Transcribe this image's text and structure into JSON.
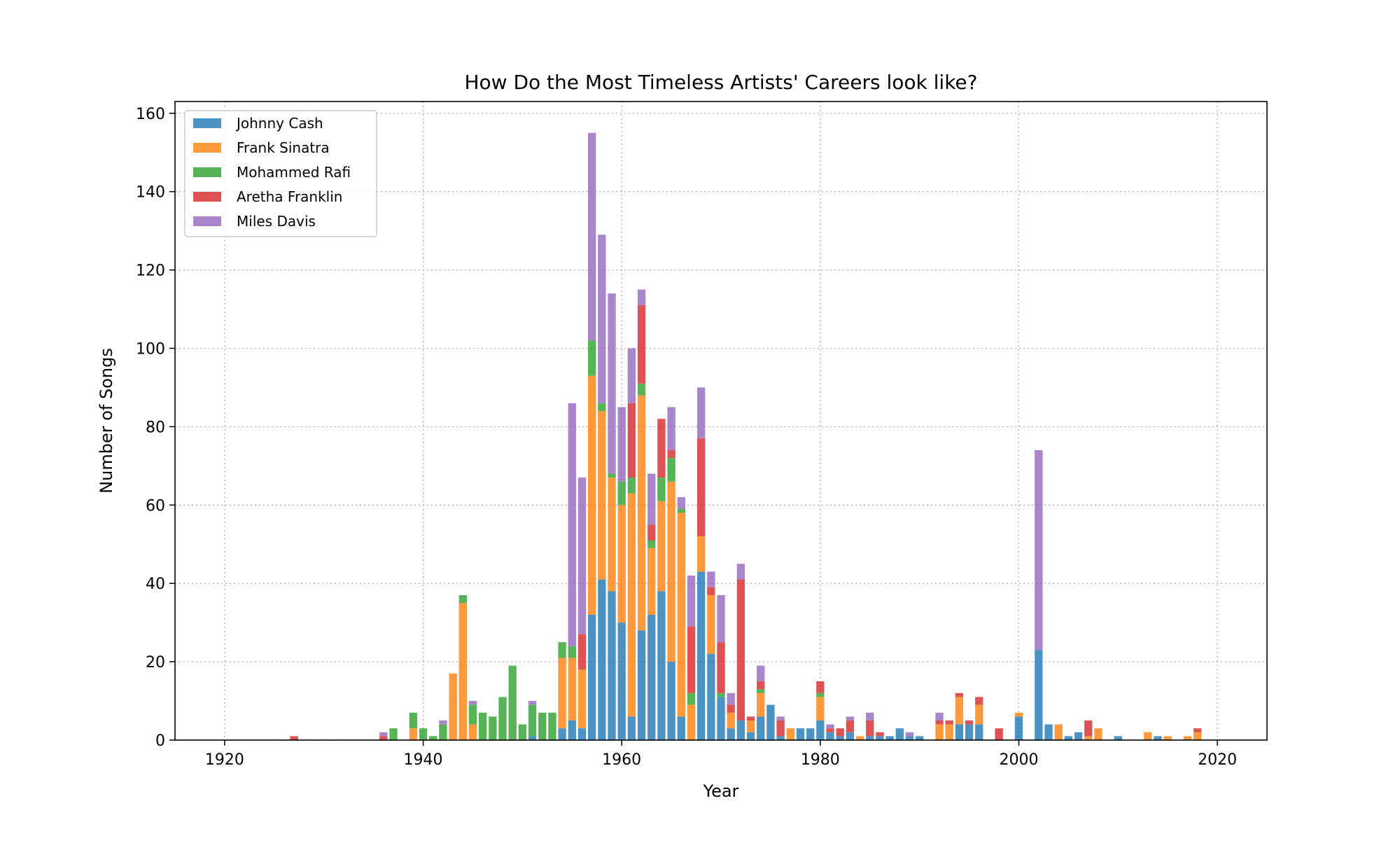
{
  "chart_data": {
    "type": "bar",
    "stacked": true,
    "title": "How Do the Most Timeless Artists' Careers look like?",
    "xlabel": "Year",
    "ylabel": "Number of Songs",
    "xlim": [
      1915,
      2025
    ],
    "ylim": [
      0,
      163
    ],
    "xticks": [
      1920,
      1940,
      1960,
      1980,
      2000,
      2020
    ],
    "yticks": [
      0,
      20,
      40,
      60,
      80,
      100,
      120,
      140,
      160
    ],
    "grid": true,
    "legend_position": "top-left",
    "x": [
      1927,
      1936,
      1937,
      1939,
      1940,
      1941,
      1942,
      1943,
      1944,
      1945,
      1946,
      1947,
      1948,
      1949,
      1950,
      1951,
      1952,
      1953,
      1954,
      1955,
      1956,
      1957,
      1958,
      1959,
      1960,
      1961,
      1962,
      1963,
      1964,
      1965,
      1966,
      1967,
      1968,
      1969,
      1970,
      1971,
      1972,
      1973,
      1974,
      1975,
      1976,
      1977,
      1978,
      1979,
      1980,
      1981,
      1982,
      1983,
      1984,
      1985,
      1986,
      1987,
      1988,
      1989,
      1990,
      1992,
      1993,
      1994,
      1995,
      1996,
      1998,
      2000,
      2002,
      2003,
      2004,
      2005,
      2006,
      2007,
      2008,
      2010,
      2013,
      2014,
      2015,
      2017,
      2018
    ],
    "series": [
      {
        "name": "Johnny Cash",
        "color": "#1f77b4",
        "values": [
          0,
          0,
          0,
          0,
          0,
          0,
          0,
          0,
          0,
          0,
          0,
          0,
          0,
          0,
          0,
          1,
          0,
          0,
          3,
          5,
          3,
          32,
          41,
          38,
          30,
          6,
          28,
          32,
          38,
          20,
          6,
          0,
          43,
          22,
          11,
          3,
          5,
          2,
          6,
          9,
          1,
          0,
          3,
          3,
          5,
          2,
          1,
          2,
          0,
          1,
          1,
          1,
          3,
          1,
          1,
          0,
          0,
          4,
          4,
          4,
          0,
          6,
          23,
          4,
          0,
          1,
          2,
          0,
          0,
          1,
          0,
          1,
          0,
          0,
          0
        ]
      },
      {
        "name": "Frank Sinatra",
        "color": "#ff7f0e",
        "values": [
          0,
          0,
          0,
          3,
          0,
          0,
          0,
          17,
          35,
          4,
          0,
          0,
          0,
          0,
          0,
          0,
          0,
          0,
          18,
          16,
          15,
          61,
          43,
          29,
          30,
          57,
          60,
          17,
          23,
          46,
          52,
          9,
          9,
          15,
          0,
          4,
          0,
          3,
          6,
          0,
          0,
          3,
          0,
          0,
          6,
          0,
          0,
          0,
          1,
          0,
          0,
          0,
          0,
          0,
          0,
          4,
          4,
          7,
          0,
          5,
          0,
          1,
          0,
          0,
          4,
          0,
          0,
          1,
          3,
          0,
          2,
          0,
          1,
          1,
          2
        ]
      },
      {
        "name": "Mohammed Rafi",
        "color": "#2ca02c",
        "values": [
          0,
          0,
          3,
          4,
          3,
          1,
          4,
          0,
          2,
          5,
          7,
          6,
          11,
          19,
          4,
          8,
          7,
          7,
          4,
          3,
          0,
          9,
          2,
          1,
          6,
          4,
          3,
          2,
          6,
          6,
          1,
          3,
          0,
          0,
          1,
          0,
          0,
          0,
          1,
          0,
          0,
          0,
          0,
          0,
          1,
          0,
          0,
          0,
          0,
          0,
          0,
          0,
          0,
          0,
          0,
          0,
          0,
          0,
          0,
          0,
          0,
          0,
          0,
          0,
          0,
          0,
          0,
          0,
          0,
          0,
          0,
          0,
          0,
          0,
          0
        ]
      },
      {
        "name": "Aretha Franklin",
        "color": "#d62728",
        "values": [
          1,
          1,
          0,
          0,
          0,
          0,
          0,
          0,
          0,
          0,
          0,
          0,
          0,
          0,
          0,
          0,
          0,
          0,
          0,
          0,
          9,
          0,
          0,
          0,
          0,
          19,
          20,
          4,
          15,
          2,
          0,
          17,
          25,
          2,
          13,
          2,
          36,
          1,
          2,
          0,
          4,
          0,
          0,
          0,
          3,
          1,
          2,
          3,
          0,
          4,
          1,
          0,
          0,
          0,
          0,
          1,
          1,
          1,
          1,
          2,
          3,
          0,
          0,
          0,
          0,
          0,
          0,
          4,
          0,
          0,
          0,
          0,
          0,
          0,
          1
        ]
      },
      {
        "name": "Miles Davis",
        "color": "#9467bd",
        "values": [
          0,
          1,
          0,
          0,
          0,
          0,
          1,
          0,
          0,
          1,
          0,
          0,
          0,
          0,
          0,
          1,
          0,
          0,
          0,
          62,
          40,
          53,
          43,
          46,
          19,
          14,
          4,
          13,
          0,
          11,
          3,
          13,
          13,
          4,
          12,
          3,
          4,
          0,
          4,
          0,
          1,
          0,
          0,
          0,
          0,
          1,
          0,
          1,
          0,
          2,
          0,
          0,
          0,
          1,
          0,
          2,
          0,
          0,
          0,
          0,
          0,
          0,
          51,
          0,
          0,
          0,
          0,
          0,
          0,
          0,
          0,
          0,
          0,
          0,
          0
        ]
      }
    ]
  }
}
